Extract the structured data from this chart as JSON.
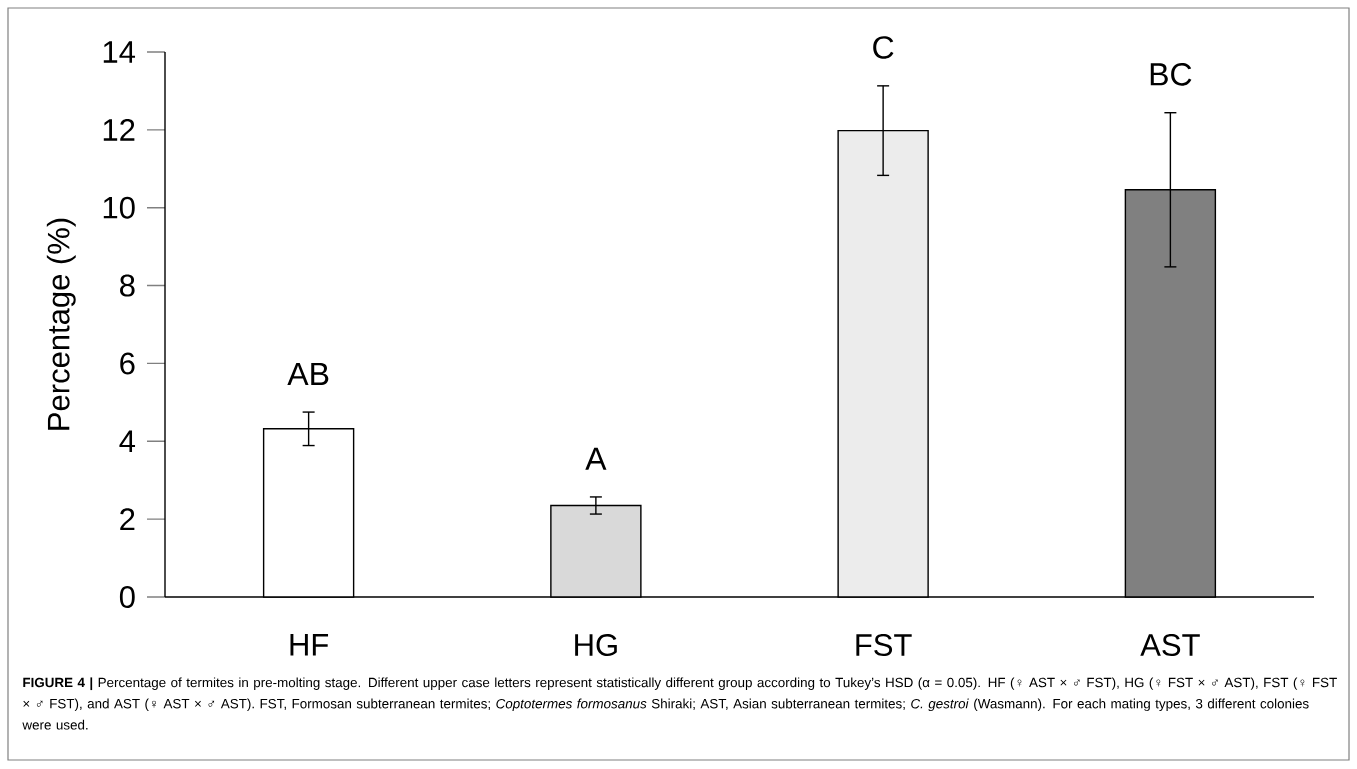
{
  "chart_data": {
    "type": "bar",
    "ylabel": "Percentage (%)",
    "categories": [
      "HF",
      "HG",
      "FST",
      "AST"
    ],
    "values": [
      4.32,
      2.35,
      11.98,
      10.46
    ],
    "errors": [
      0.43,
      0.22,
      1.15,
      1.98
    ],
    "colors": [
      "#ffffff",
      "#d9d9d9",
      "#ececec",
      "#808080"
    ],
    "ylim": [
      0,
      14
    ],
    "yticks": [
      0,
      2,
      4,
      6,
      8,
      10,
      12,
      14
    ],
    "annotations": [
      "AB",
      "A",
      "C",
      "BC",
      "**FIGURE 4 |** Percentage of termites in pre-molting stage. Different upper case letters represent statistically different group according to Tukey’s HSD (α = 0.05). HF (♀ AST × ♂ FST), HG (♀ FST × ♂ AST), FST (♀ FST × ♂ FST), and AST (♀ AST × ♂ AST). FST, Formosan subterranean termites; *Coptotermes formosanus* Shiraki; AST, Asian subterranean termites; *C. gestroi* (Wasmann). For each mating types, 3 different colonies were used."
    ]
  }
}
